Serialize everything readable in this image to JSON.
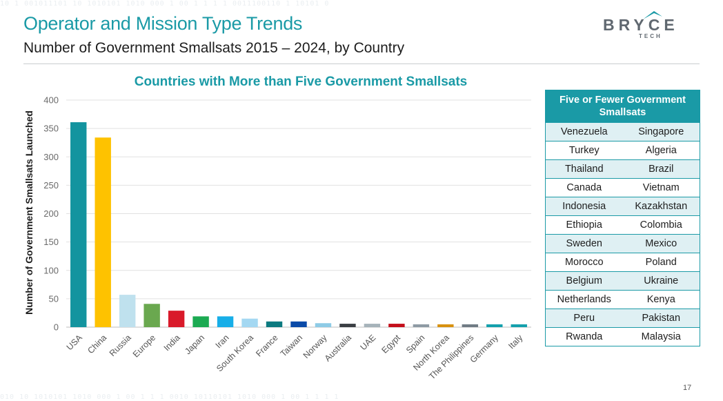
{
  "header": {
    "title": "Operator and Mission Type Trends",
    "subtitle": "Number of Government Smallsats 2015 – 2024, by Country"
  },
  "logo": {
    "name": "BRYCE",
    "tagline": "TECH"
  },
  "chart_data": {
    "type": "bar",
    "title": "Countries with More than Five Government Smallsats",
    "ylabel": "Number of Government Smallsats Launched",
    "xlabel": "",
    "ylim": [
      0,
      400
    ],
    "yticks": [
      0,
      50,
      100,
      150,
      200,
      250,
      300,
      350,
      400
    ],
    "grid": true,
    "categories": [
      "USA",
      "China",
      "Russia",
      "Europe",
      "India",
      "Japan",
      "Iran",
      "South Korea",
      "France",
      "Taiwan",
      "Norway",
      "Australia",
      "UAE",
      "Egypt",
      "Spain",
      "North Korea",
      "The Philippines",
      "Germany",
      "Italy"
    ],
    "values": [
      361,
      334,
      57,
      41,
      29,
      19,
      19,
      15,
      10,
      10,
      7,
      6,
      6,
      6,
      5,
      5,
      5,
      5,
      5
    ],
    "colors": [
      "#13949f",
      "#fec200",
      "#bfe1ee",
      "#6aa84f",
      "#d91a2a",
      "#1caa52",
      "#17aee8",
      "#a4d8f2",
      "#0c7a80",
      "#0a4aa8",
      "#8ecbe6",
      "#3b3f44",
      "#a6b3ba",
      "#c40f1b",
      "#8e9aa4",
      "#d89110",
      "#707b84",
      "#14a0ac",
      "#14a0ac"
    ]
  },
  "side_table": {
    "header": "Five or Fewer Government Smallsats",
    "rows": [
      [
        "Venezuela",
        "Singapore"
      ],
      [
        "Turkey",
        "Algeria"
      ],
      [
        "Thailand",
        "Brazil"
      ],
      [
        "Canada",
        "Vietnam"
      ],
      [
        "Indonesia",
        "Kazakhstan"
      ],
      [
        "Ethiopia",
        "Colombia"
      ],
      [
        "Sweden",
        "Mexico"
      ],
      [
        "Morocco",
        "Poland"
      ],
      [
        "Belgium",
        "Ukraine"
      ],
      [
        "Netherlands",
        "Kenya"
      ],
      [
        "Peru",
        "Pakistan"
      ],
      [
        "Rwanda",
        "Malaysia"
      ]
    ]
  },
  "footer": {
    "page_number": "17"
  }
}
